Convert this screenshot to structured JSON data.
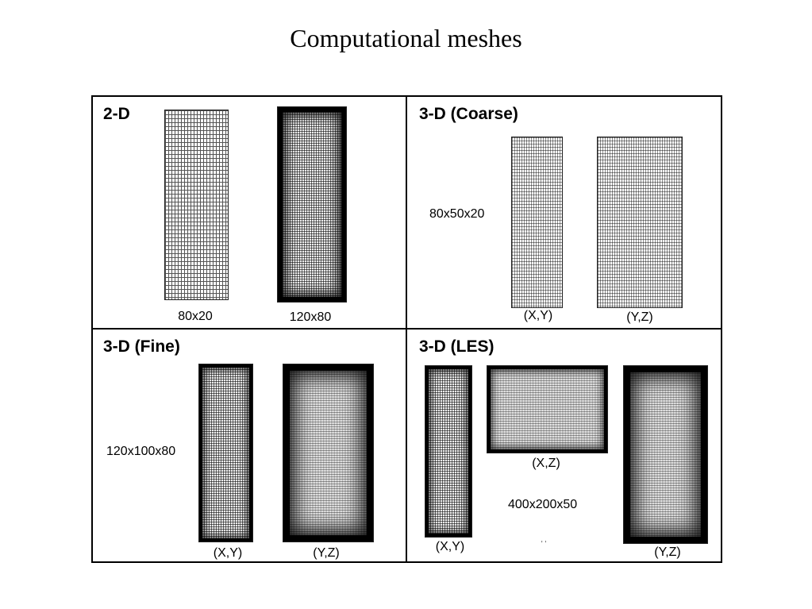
{
  "title": "Computational meshes",
  "panels": {
    "p2d": {
      "title": "2-D",
      "meshes": [
        {
          "label": "80x20",
          "grid": "coarse"
        },
        {
          "label": "120x80",
          "grid": "fine"
        }
      ]
    },
    "coarse3d": {
      "title": "3-D (Coarse)",
      "resolution": "80x50x20",
      "views": [
        "(X,Y)",
        "(Y,Z)"
      ]
    },
    "fine3d": {
      "title": "3-D (Fine)",
      "resolution": "120x100x80",
      "views": [
        "(X,Y)",
        "(Y,Z)"
      ]
    },
    "les3d": {
      "title": "3-D (LES)",
      "resolution": "400x200x50",
      "views": [
        "(X,Y)",
        "(X,Z)",
        "(Y,Z)"
      ],
      "stray_mark": "' '"
    }
  }
}
